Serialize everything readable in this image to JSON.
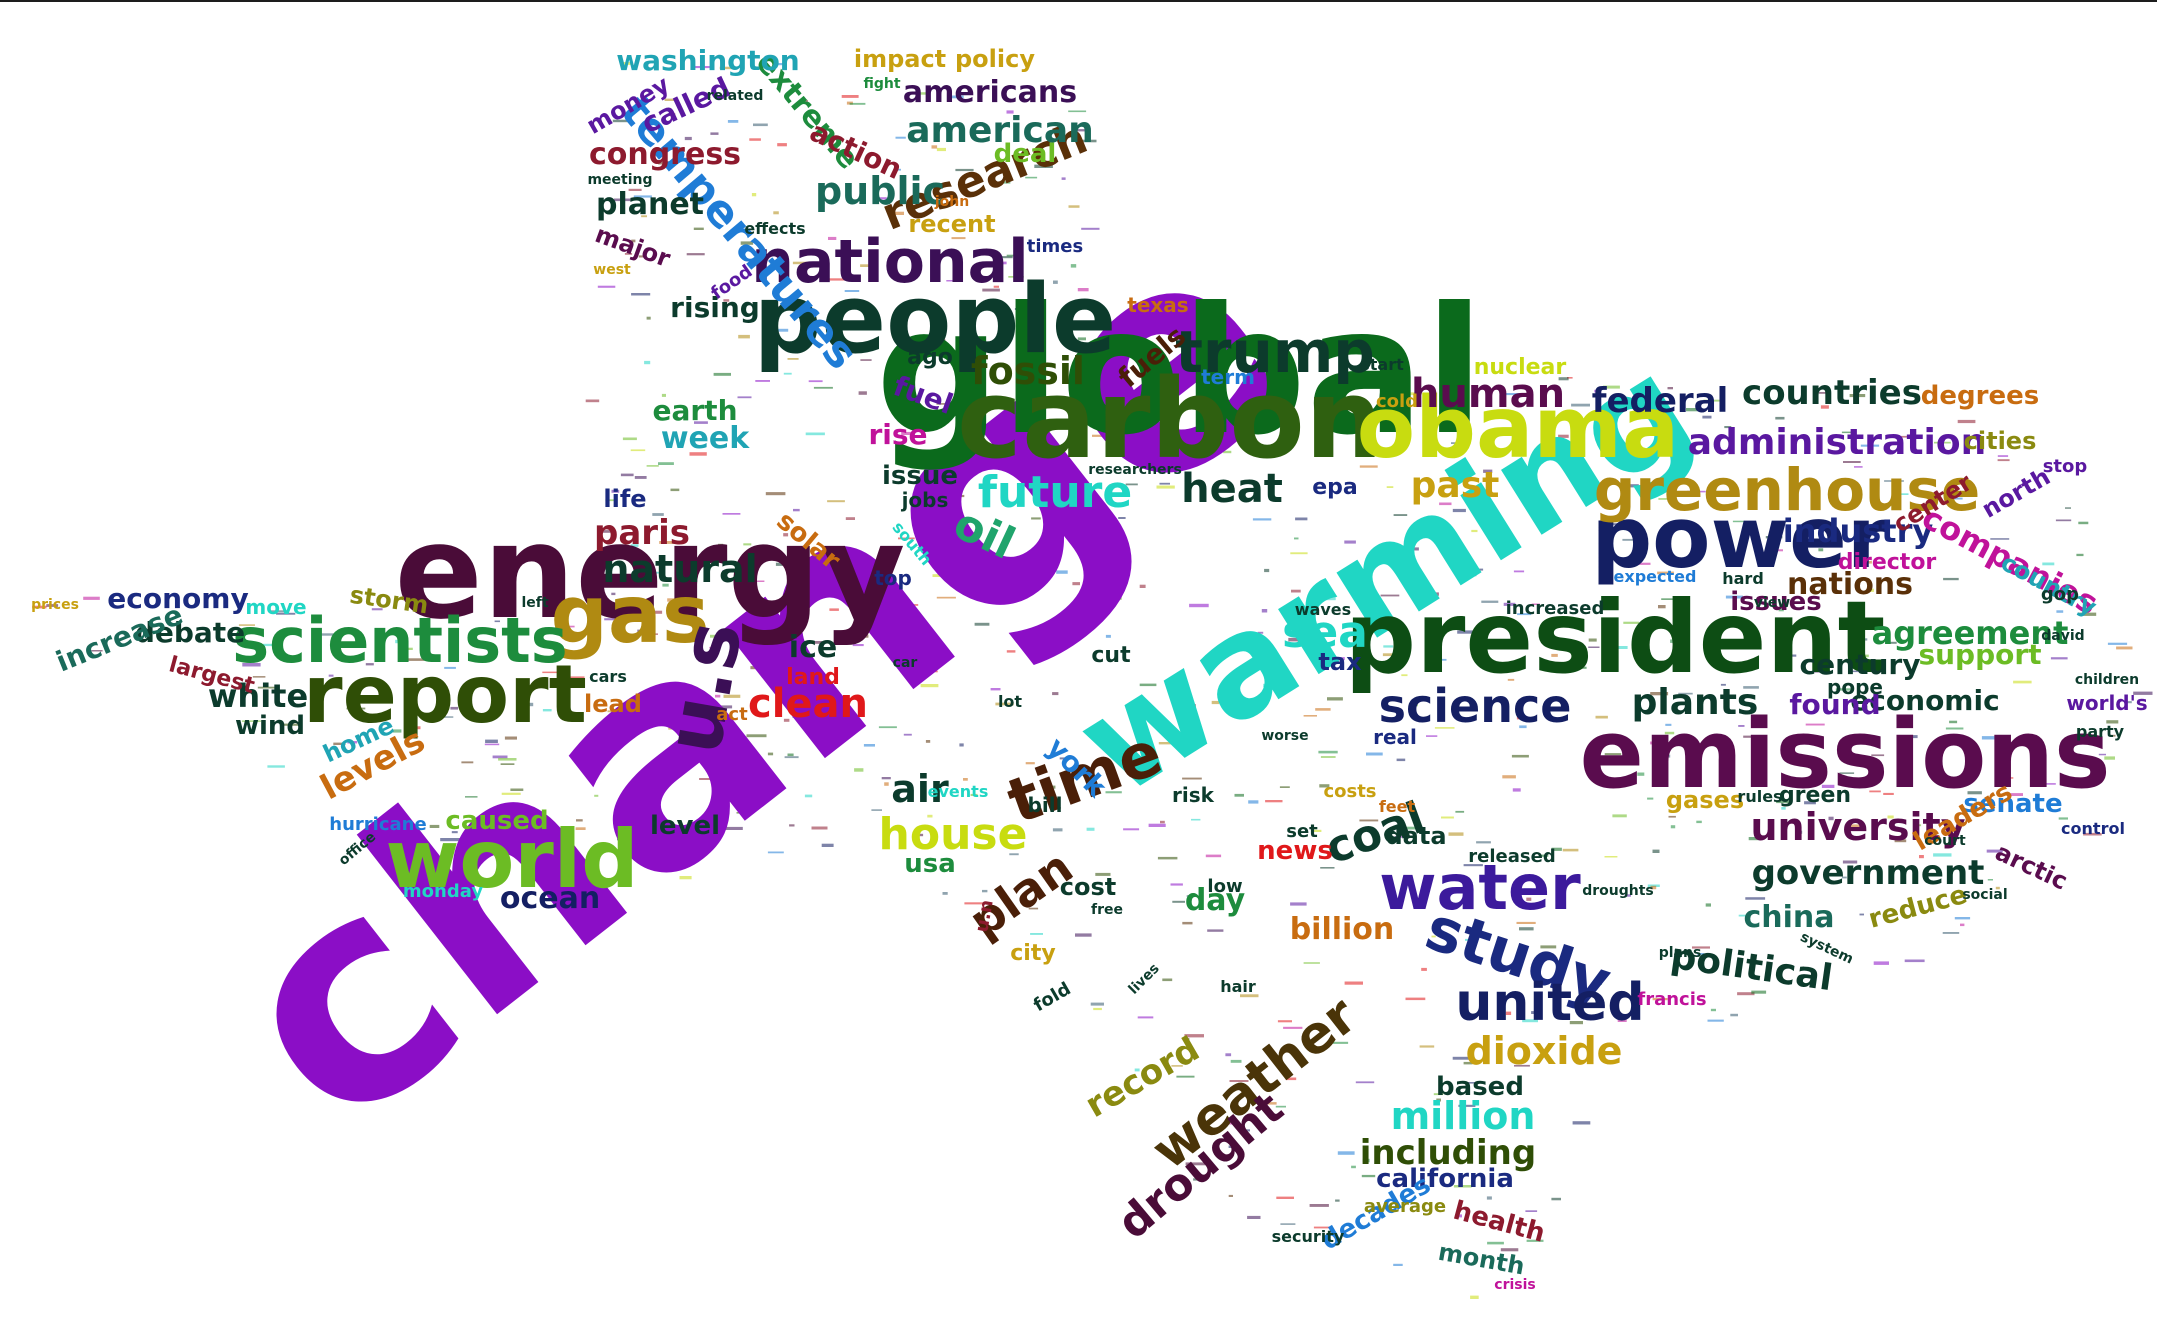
{
  "image": {
    "kind": "word-cloud",
    "shape": "texas-state-outline",
    "background": "#ffffff",
    "top_rule_color": "#1d1d1d"
  },
  "palette": {
    "purple": "#8b0ec6",
    "green": "#0b6a1c",
    "teal": "#20d6c4",
    "dark_plum": "#4a0c38",
    "dark_green": "#0c3b2c",
    "olive": "#2f4e06",
    "lime": "#c8dc10",
    "gold": "#b08a12",
    "navy": "#141f63",
    "violet": "#5a18a0",
    "dark_purple": "#3b0f56",
    "emerald": "#1d8c3d",
    "brown": "#5a2f08",
    "crimson": "#8d1a2e",
    "blue": "#1f7cd6",
    "red": "#e0181a",
    "magenta": "#c0129a",
    "orange": "#c86c10",
    "grass": "#6cbc24",
    "slate": "#355a6e"
  },
  "words": [
    {
      "text": "change",
      "color": "#8b0ec6"
    },
    {
      "text": "global",
      "color": "#0b6a1c"
    },
    {
      "text": "warming",
      "color": "#20d6c4"
    },
    {
      "text": "energy",
      "color": "#4a0c38"
    },
    {
      "text": "carbon",
      "color": "#2f6010"
    },
    {
      "text": "people",
      "color": "#0c3b2c"
    },
    {
      "text": "president",
      "color": "#0d4d14"
    },
    {
      "text": "emissions",
      "color": "#5a0c4e"
    },
    {
      "text": "obama",
      "color": "#c8dc10"
    },
    {
      "text": "power",
      "color": "#141f63"
    },
    {
      "text": "report",
      "color": "#2f4e06"
    },
    {
      "text": "world",
      "color": "#6cbc24"
    },
    {
      "text": "gas",
      "color": "#b08a12"
    },
    {
      "text": "u.s",
      "color": "#3b0f56"
    },
    {
      "text": "scientists",
      "color": "#1d8c3d"
    },
    {
      "text": "greenhouse",
      "color": "#b08a12"
    },
    {
      "text": "national",
      "color": "#3b0f56"
    },
    {
      "text": "trump",
      "color": "#0c3b2c"
    },
    {
      "text": "water",
      "color": "#3c1a9c"
    },
    {
      "text": "study",
      "color": "#1a2a80"
    },
    {
      "text": "time",
      "color": "#4a1f08"
    },
    {
      "text": "weather",
      "color": "#4a3408"
    },
    {
      "text": "united",
      "color": "#141f63"
    },
    {
      "text": "temperatures",
      "color": "#1f7cd6"
    },
    {
      "text": "research",
      "color": "#5a3008"
    },
    {
      "text": "american",
      "color": "#1a6a5a"
    },
    {
      "text": "science",
      "color": "#141f63"
    },
    {
      "text": "university",
      "color": "#5a0c4e"
    },
    {
      "text": "administration",
      "color": "#5a18a0"
    },
    {
      "text": "house",
      "color": "#c8dc10"
    },
    {
      "text": "human",
      "color": "#5a0c4e"
    },
    {
      "text": "heat",
      "color": "#0c3b2c"
    },
    {
      "text": "fossil",
      "color": "#2f4e06"
    },
    {
      "text": "future",
      "color": "#20d6c4"
    },
    {
      "text": "oil",
      "color": "#20a46c"
    },
    {
      "text": "sea",
      "color": "#20d6c4"
    },
    {
      "text": "coal",
      "color": "#0c3b2c"
    },
    {
      "text": "plan",
      "color": "#4a1f08"
    },
    {
      "text": "drought",
      "color": "#4a0c38"
    },
    {
      "text": "government",
      "color": "#0c3b2c"
    },
    {
      "text": "natural",
      "color": "#0c3b2c"
    },
    {
      "text": "plants",
      "color": "#0c3b2c"
    },
    {
      "text": "dioxide",
      "color": "#c8a010"
    },
    {
      "text": "million",
      "color": "#20d6c4"
    },
    {
      "text": "including",
      "color": "#2f4e06"
    },
    {
      "text": "past",
      "color": "#c8a010"
    },
    {
      "text": "industry",
      "color": "#1a2a80"
    },
    {
      "text": "countries",
      "color": "#0c3b2c"
    },
    {
      "text": "federal",
      "color": "#141f63"
    },
    {
      "text": "public",
      "color": "#1a6a5a"
    },
    {
      "text": "clean",
      "color": "#e0181a"
    },
    {
      "text": "record",
      "color": "#8a8a10"
    },
    {
      "text": "political",
      "color": "#0c3b2c"
    },
    {
      "text": "agreement",
      "color": "#1d8c3d"
    },
    {
      "text": "nations",
      "color": "#5a3008"
    },
    {
      "text": "companies",
      "color": "#c0129a"
    },
    {
      "text": "air",
      "color": "#0c3b2c"
    },
    {
      "text": "levels",
      "color": "#c86c10"
    },
    {
      "text": "paris",
      "color": "#8d1a2e"
    },
    {
      "text": "white",
      "color": "#0c3b2c"
    },
    {
      "text": "congress",
      "color": "#8d1a2e"
    },
    {
      "text": "americans",
      "color": "#3b0f56"
    },
    {
      "text": "planet",
      "color": "#0c3b2c"
    },
    {
      "text": "extreme",
      "color": "#1d8c3d"
    },
    {
      "text": "washington",
      "color": "#20a4b4"
    },
    {
      "text": "action",
      "color": "#8d1a2e"
    },
    {
      "text": "deal",
      "color": "#6cbc24"
    },
    {
      "text": "impact",
      "color": "#c8a010"
    },
    {
      "text": "policy",
      "color": "#c8a010"
    },
    {
      "text": "called",
      "color": "#5a18a0"
    },
    {
      "text": "money",
      "color": "#5a18a0"
    },
    {
      "text": "recent",
      "color": "#c8a010"
    },
    {
      "text": "major",
      "color": "#5a0c4e"
    },
    {
      "text": "rising",
      "color": "#0c3b2c"
    },
    {
      "text": "fuels",
      "color": "#4a1f08"
    },
    {
      "text": "ago",
      "color": "#0c3b2c"
    },
    {
      "text": "fuel",
      "color": "#5a18a0"
    },
    {
      "text": "earth",
      "color": "#1d8c3d"
    },
    {
      "text": "week",
      "color": "#20a4b4"
    },
    {
      "text": "rise",
      "color": "#c0129a"
    },
    {
      "text": "issue",
      "color": "#0c3b2c"
    },
    {
      "text": "term",
      "color": "#1f7cd6"
    },
    {
      "text": "nuclear",
      "color": "#c8dc10"
    },
    {
      "text": "degrees",
      "color": "#c86c10"
    },
    {
      "text": "cities",
      "color": "#8a8a10"
    },
    {
      "text": "center",
      "color": "#8d1a2e"
    },
    {
      "text": "north",
      "color": "#5a18a0"
    },
    {
      "text": "country",
      "color": "#20a4b4"
    },
    {
      "text": "director",
      "color": "#c0129a"
    },
    {
      "text": "issues",
      "color": "#5a0c4e"
    },
    {
      "text": "century",
      "color": "#0c3b2c"
    },
    {
      "text": "support",
      "color": "#6cbc24"
    },
    {
      "text": "economic",
      "color": "#0c3b2c"
    },
    {
      "text": "found",
      "color": "#5a18a0"
    },
    {
      "text": "senate",
      "color": "#1f7cd6"
    },
    {
      "text": "leaders",
      "color": "#c86c10"
    },
    {
      "text": "reduce",
      "color": "#8a8a10"
    },
    {
      "text": "arctic",
      "color": "#5a0c4e"
    },
    {
      "text": "china",
      "color": "#1a6a5a"
    },
    {
      "text": "green",
      "color": "#0c3b2c"
    },
    {
      "text": "gases",
      "color": "#c8a010"
    },
    {
      "text": "economy",
      "color": "#1a2a80"
    },
    {
      "text": "debate",
      "color": "#0c3b2c"
    },
    {
      "text": "increase",
      "color": "#1a6a5a"
    },
    {
      "text": "storm",
      "color": "#8a8a10"
    },
    {
      "text": "wind",
      "color": "#0c3b2c"
    },
    {
      "text": "largest",
      "color": "#8d1a2e"
    },
    {
      "text": "move",
      "color": "#20d6c4"
    },
    {
      "text": "home",
      "color": "#20a4b4"
    },
    {
      "text": "caused",
      "color": "#6cbc24"
    },
    {
      "text": "hurricane",
      "color": "#1f7cd6"
    },
    {
      "text": "level",
      "color": "#0c3b2c"
    },
    {
      "text": "ocean",
      "color": "#141f63"
    },
    {
      "text": "monday",
      "color": "#20d6c4"
    },
    {
      "text": "usa",
      "color": "#1d8c3d"
    },
    {
      "text": "ice",
      "color": "#0c3b2c"
    },
    {
      "text": "land",
      "color": "#e0181a"
    },
    {
      "text": "lead",
      "color": "#c86c10"
    },
    {
      "text": "solar",
      "color": "#c86c10"
    },
    {
      "text": "life",
      "color": "#1a2a80"
    },
    {
      "text": "jobs",
      "color": "#0c3b2c"
    },
    {
      "text": "top",
      "color": "#1a2a80"
    },
    {
      "text": "cut",
      "color": "#0c3b2c"
    },
    {
      "text": "tax",
      "color": "#1a2a80"
    },
    {
      "text": "epa",
      "color": "#1a2a80"
    },
    {
      "text": "data",
      "color": "#0c3b2c"
    },
    {
      "text": "news",
      "color": "#e0181a"
    },
    {
      "text": "day",
      "color": "#1d8c3d"
    },
    {
      "text": "cost",
      "color": "#0c3b2c"
    },
    {
      "text": "billion",
      "color": "#c86c10"
    },
    {
      "text": "city",
      "color": "#c8a010"
    },
    {
      "text": "york",
      "color": "#1f7cd6"
    },
    {
      "text": "based",
      "color": "#0c3b2c"
    },
    {
      "text": "california",
      "color": "#1a2a80"
    },
    {
      "text": "decades",
      "color": "#1f7cd6"
    },
    {
      "text": "average",
      "color": "#8a8a10"
    },
    {
      "text": "health",
      "color": "#8d1a2e"
    },
    {
      "text": "month",
      "color": "#1a6a5a"
    },
    {
      "text": "security",
      "color": "#0c3b2c"
    },
    {
      "text": "crisis",
      "color": "#c0129a"
    },
    {
      "text": "francis",
      "color": "#c0129a"
    },
    {
      "text": "texas",
      "color": "#c86c10"
    },
    {
      "text": "south",
      "color": "#20d6c4"
    },
    {
      "text": "real",
      "color": "#1a2a80"
    },
    {
      "text": "risk",
      "color": "#0c3b2c"
    },
    {
      "text": "low",
      "color": "#0c3b2c"
    },
    {
      "text": "released",
      "color": "#0c3b2c"
    },
    {
      "text": "costs",
      "color": "#c8a010"
    },
    {
      "text": "feet",
      "color": "#c86c10"
    },
    {
      "text": "rules",
      "color": "#0c3b2c"
    },
    {
      "text": "set",
      "color": "#0c3b2c"
    },
    {
      "text": "bill",
      "color": "#0c3b2c"
    },
    {
      "text": "fold",
      "color": "#0c3b2c"
    },
    {
      "text": "pope",
      "color": "#0c3b2c"
    },
    {
      "text": "hard",
      "color": "#0c3b2c"
    },
    {
      "text": "control",
      "color": "#1a2a80"
    },
    {
      "text": "expected",
      "color": "#1f7cd6"
    },
    {
      "text": "u.n",
      "color": "#8d1a2e"
    },
    {
      "text": "act",
      "color": "#c86c10"
    },
    {
      "text": "cold",
      "color": "#c8a010"
    },
    {
      "text": "start",
      "color": "#0c3b2c"
    },
    {
      "text": "gop",
      "color": "#0c3b2c"
    },
    {
      "text": "david",
      "color": "#0c3b2c"
    },
    {
      "text": "world's",
      "color": "#5a18a0"
    },
    {
      "text": "party",
      "color": "#0c3b2c"
    },
    {
      "text": "children",
      "color": "#0c3b2c"
    },
    {
      "text": "stop",
      "color": "#5a18a0"
    },
    {
      "text": "food",
      "color": "#5a18a0"
    },
    {
      "text": "effects",
      "color": "#0c3b2c"
    },
    {
      "text": "times",
      "color": "#1a2a80"
    },
    {
      "text": "john",
      "color": "#c86c10"
    },
    {
      "text": "west",
      "color": "#c8a010"
    },
    {
      "text": "fight",
      "color": "#1d8c3d"
    },
    {
      "text": "related",
      "color": "#0c3b2c"
    },
    {
      "text": "meeting",
      "color": "#0c3b2c"
    },
    {
      "text": "prices",
      "color": "#c8a010"
    },
    {
      "text": "events",
      "color": "#20d6c4"
    },
    {
      "text": "researchers",
      "color": "#0c3b2c"
    },
    {
      "text": "lives",
      "color": "#0c3b2c"
    },
    {
      "text": "worse",
      "color": "#0c3b2c"
    },
    {
      "text": "droughts",
      "color": "#0c3b2c"
    },
    {
      "text": "increased",
      "color": "#0c3b2c"
    },
    {
      "text": "social",
      "color": "#0c3b2c"
    },
    {
      "text": "court",
      "color": "#0c3b2c"
    },
    {
      "text": "plans",
      "color": "#0c3b2c"
    },
    {
      "text": "system",
      "color": "#0c3b2c"
    },
    {
      "text": "waves",
      "color": "#0c3b2c"
    },
    {
      "text": "hair",
      "color": "#0c3b2c"
    },
    {
      "text": "free",
      "color": "#0c3b2c"
    },
    {
      "text": "cars",
      "color": "#0c3b2c"
    },
    {
      "text": "car",
      "color": "#0c3b2c"
    },
    {
      "text": "lot",
      "color": "#0c3b2c"
    },
    {
      "text": "view",
      "color": "#0c3b2c"
    },
    {
      "text": "left",
      "color": "#0c3b2c"
    },
    {
      "text": "office",
      "color": "#0c3b2c"
    }
  ]
}
